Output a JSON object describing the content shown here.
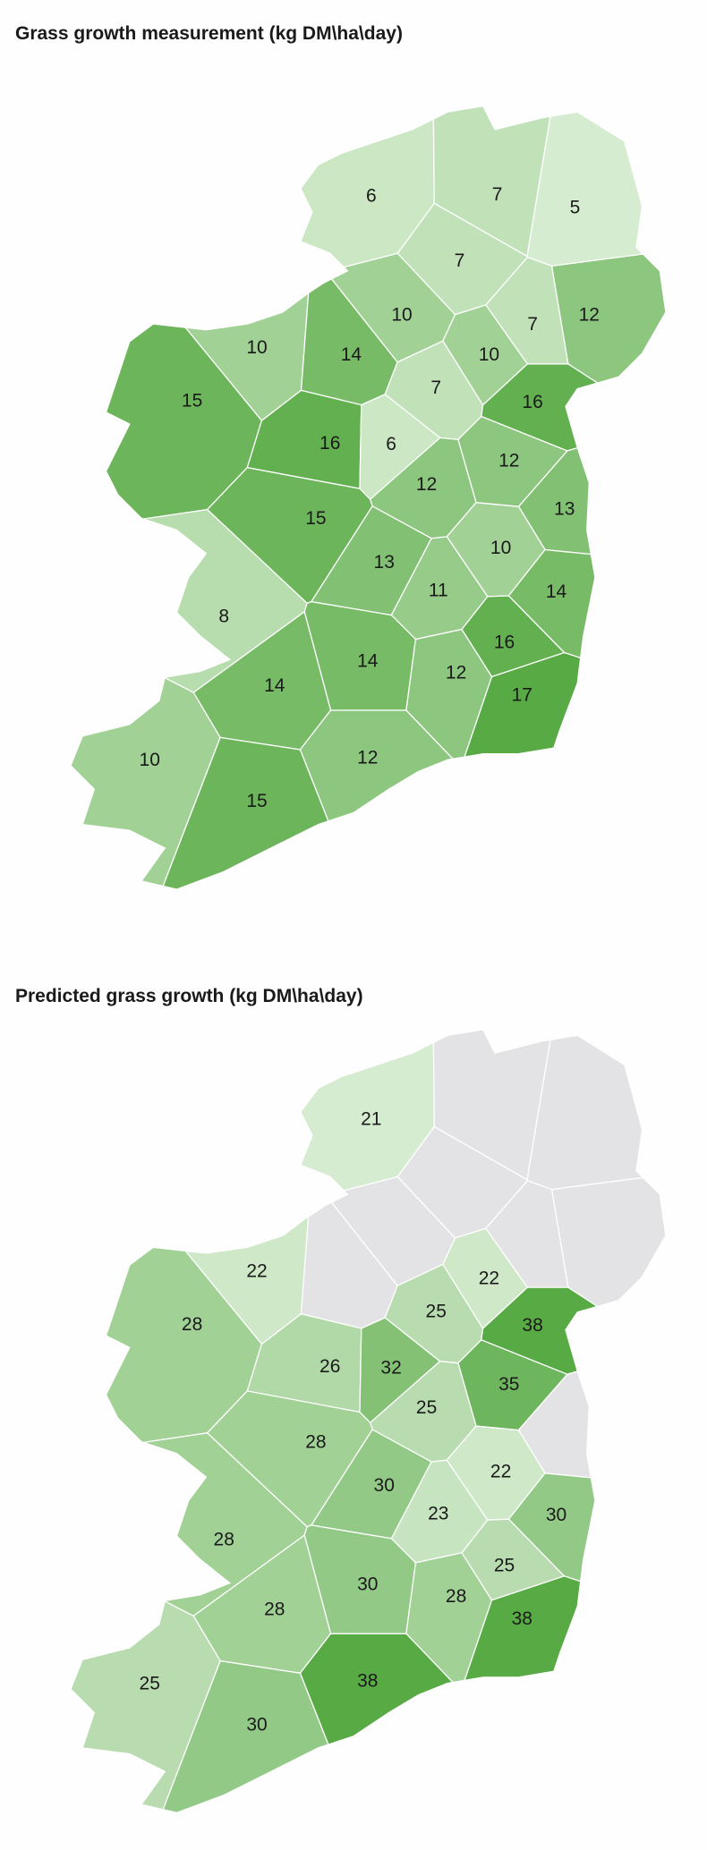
{
  "maps": [
    {
      "title": "Grass growth measurement (kg DM\\ha\\day)",
      "values": [
        6,
        7,
        5,
        7,
        10,
        7,
        12,
        10,
        14,
        7,
        10,
        16,
        15,
        16,
        6,
        12,
        12,
        13,
        15,
        10,
        13,
        11,
        14,
        8,
        14,
        16,
        12,
        17,
        14,
        10,
        12,
        15
      ]
    },
    {
      "title": "Predicted grass growth  (kg DM\\ha\\day)",
      "values": [
        21,
        null,
        null,
        null,
        null,
        null,
        null,
        22,
        null,
        25,
        22,
        38,
        28,
        26,
        32,
        35,
        25,
        null,
        28,
        22,
        30,
        23,
        30,
        28,
        30,
        25,
        28,
        38,
        28,
        25,
        38,
        30
      ]
    }
  ]
}
